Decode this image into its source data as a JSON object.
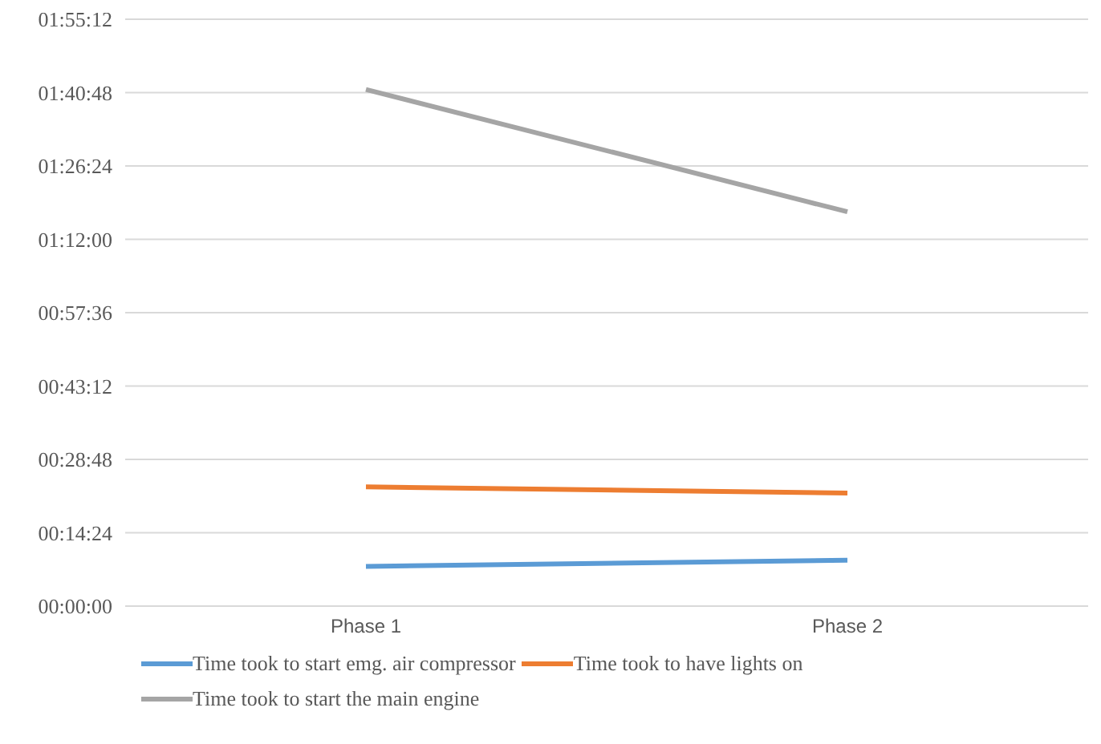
{
  "chart_data": {
    "type": "line",
    "categories": [
      "Phase 1",
      "Phase 2"
    ],
    "series": [
      {
        "name": "Time took to start emg. air compressor",
        "color": "#5b9bd5",
        "values": [
          0.13,
          0.15
        ]
      },
      {
        "name": "Time took to have lights on",
        "color": "#ed7d31",
        "values": [
          0.39,
          0.37
        ]
      },
      {
        "name": "Time took to start the main engine",
        "color": "#a5a5a5",
        "values": [
          1.69,
          1.29
        ]
      }
    ],
    "ylim": [
      0,
      1.92
    ],
    "yticks": [
      {
        "value": 0,
        "label": "00:00:00"
      },
      {
        "value": 0.24,
        "label": "00:14:24"
      },
      {
        "value": 0.48,
        "label": "00:28:48"
      },
      {
        "value": 0.72,
        "label": "00:43:12"
      },
      {
        "value": 0.96,
        "label": "00:57:36"
      },
      {
        "value": 1.2,
        "label": "01:12:00"
      },
      {
        "value": 1.44,
        "label": "01:26:24"
      },
      {
        "value": 1.68,
        "label": "01:40:48"
      },
      {
        "value": 1.92,
        "label": "01:55:12"
      }
    ],
    "grid": "y",
    "legend": "bottom",
    "marker": "none",
    "line_style": "solid"
  }
}
